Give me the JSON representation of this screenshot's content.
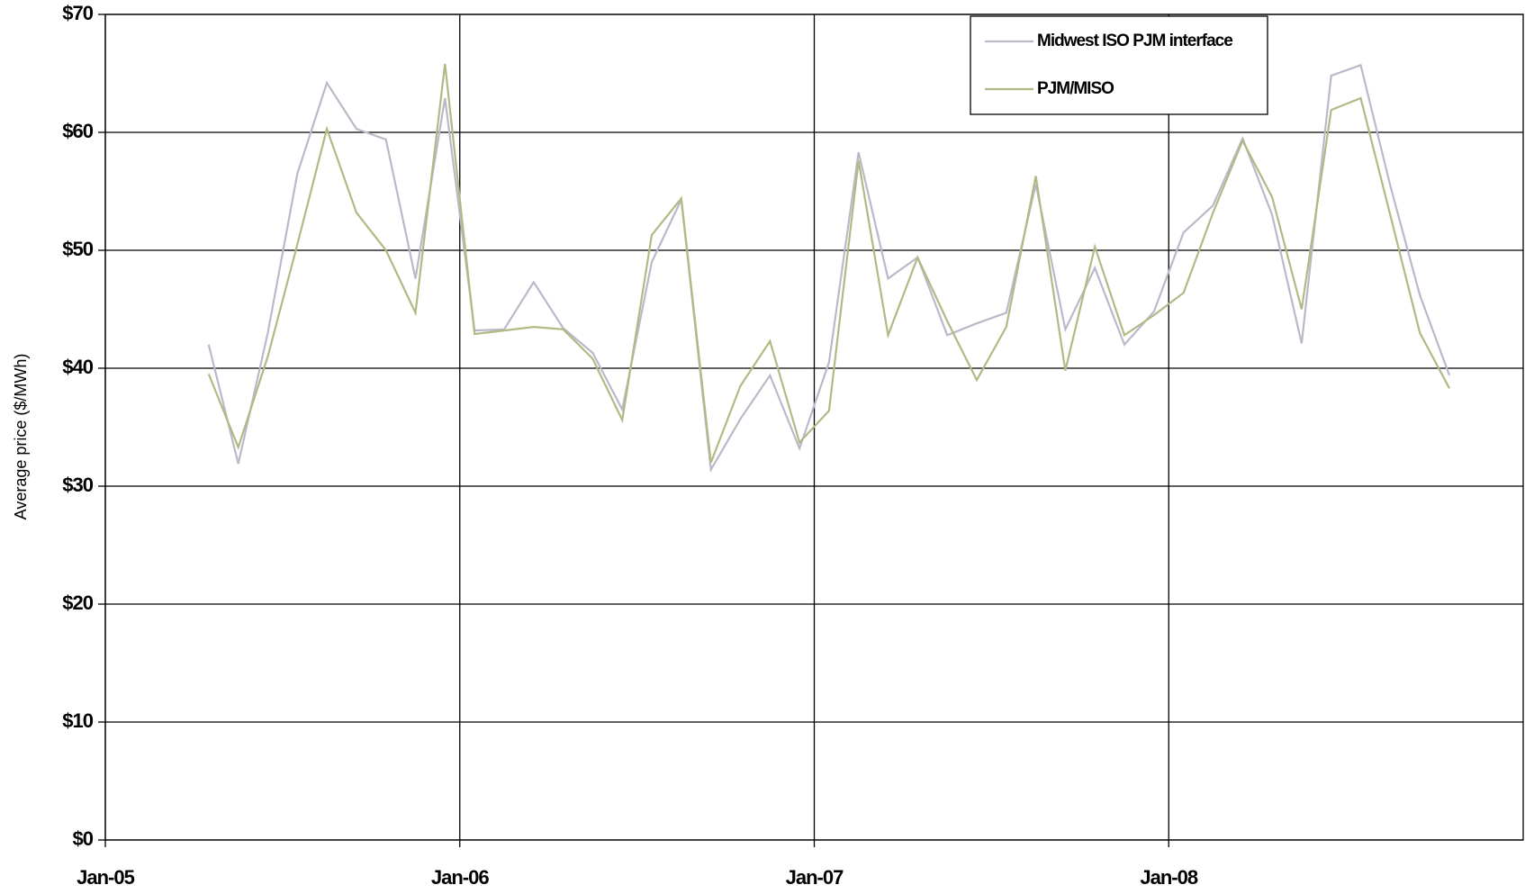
{
  "chart_data": {
    "type": "line",
    "y_label": "Average price ($/MWh)",
    "x": [
      "Apr-05",
      "May-05",
      "Jun-05",
      "Jul-05",
      "Aug-05",
      "Sep-05",
      "Oct-05",
      "Nov-05",
      "Dec-05",
      "Jan-06",
      "Feb-06",
      "Mar-06",
      "Apr-06",
      "May-06",
      "Jun-06",
      "Jul-06",
      "Aug-06",
      "Sep-06",
      "Oct-06",
      "Nov-06",
      "Dec-06",
      "Jan-07",
      "Feb-07",
      "Mar-07",
      "Apr-07",
      "May-07",
      "Jun-07",
      "Jul-07",
      "Aug-07",
      "Sep-07",
      "Oct-07",
      "Nov-07",
      "Dec-07",
      "Jan-08",
      "Feb-08",
      "Mar-08",
      "Apr-08",
      "May-08",
      "Jun-08",
      "Jul-08",
      "Aug-08",
      "Sep-08",
      "Oct-08"
    ],
    "series": [
      {
        "name": "Midwest ISO PJM interface",
        "color": "#b9b9c9",
        "values": [
          42,
          31.9,
          43,
          56.5,
          64.2,
          60.3,
          59.4,
          47.6,
          62.9,
          43.2,
          43.3,
          47.3,
          43.4,
          41.3,
          36.5,
          49,
          54.3,
          31.4,
          35.7,
          39.4,
          33.2,
          40.5,
          58.3,
          47.6,
          49.4,
          42.8,
          43.8,
          44.7,
          55.6,
          43.3,
          48.5,
          42,
          44.8,
          51.5,
          53.8,
          59.5,
          53,
          42.1,
          64.8,
          65.7,
          55.5,
          46.2,
          39.4
        ]
      },
      {
        "name": "PJM/MISO",
        "color": "#aebb84",
        "values": [
          39.5,
          33.3,
          41,
          50.5,
          60.3,
          53.2,
          50,
          44.7,
          65.8,
          42.9,
          43.2,
          43.5,
          43.3,
          40.8,
          35.6,
          51.3,
          54.4,
          32,
          38.5,
          42.3,
          33.7,
          36.4,
          57.6,
          42.8,
          49.4,
          44,
          39,
          43.5,
          56.3,
          39.8,
          50.3,
          42.8,
          44.5,
          46.4,
          53.2,
          59.3,
          54.5,
          45,
          61.9,
          62.9,
          53,
          43,
          38.3
        ]
      }
    ],
    "xlim": [
      "Jan-05",
      "Dec-08"
    ],
    "xticks": [
      "Jan-05",
      "Jan-06",
      "Jan-07",
      "Jan-08"
    ],
    "ylim": [
      0,
      70
    ],
    "yticks": [
      {
        "value": 0,
        "label": "$0"
      },
      {
        "value": 10,
        "label": "$10"
      },
      {
        "value": 20,
        "label": "$20"
      },
      {
        "value": 30,
        "label": "$30"
      },
      {
        "value": 40,
        "label": "$40"
      },
      {
        "value": 50,
        "label": "$50"
      },
      {
        "value": 60,
        "label": "$60"
      },
      {
        "value": 70,
        "label": "$70"
      }
    ],
    "grid": true,
    "legend": "upper right"
  }
}
